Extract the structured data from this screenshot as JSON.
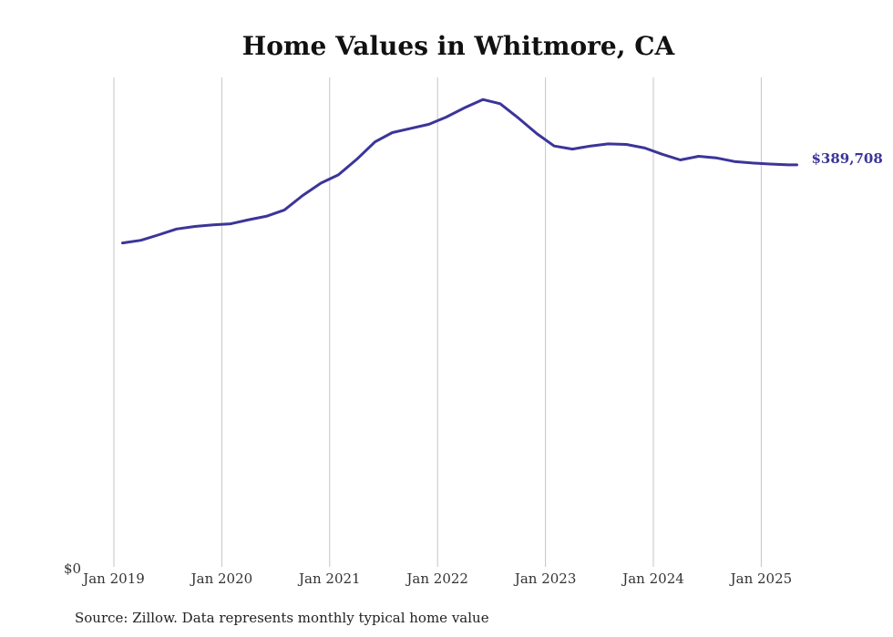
{
  "chart_data": {
    "type": "line",
    "title": "Home Values in Whitmore, CA",
    "source": "Source: Zillow. Data represents monthly typical home value",
    "y_tick_label": "$0",
    "end_label": "$389,708",
    "ylim": [
      0,
      470000
    ],
    "x_ticks": [
      {
        "x": 2019,
        "label": "Jan 2019"
      },
      {
        "x": 2020,
        "label": "Jan 2020"
      },
      {
        "x": 2021,
        "label": "Jan 2021"
      },
      {
        "x": 2022,
        "label": "Jan 2022"
      },
      {
        "x": 2023,
        "label": "Jan 2023"
      },
      {
        "x": 2024,
        "label": "Jan 2024"
      },
      {
        "x": 2025,
        "label": "Jan 2025"
      }
    ],
    "xlim": [
      2019.0,
      2025.33
    ],
    "grid": "vertical",
    "colors": {
      "line": "#3b3599",
      "grid": "#c4c4c4"
    },
    "series": [
      {
        "points": [
          [
            2019.08,
            314000
          ],
          [
            2019.25,
            316500
          ],
          [
            2019.42,
            322000
          ],
          [
            2019.58,
            327500
          ],
          [
            2019.75,
            330000
          ],
          [
            2019.92,
            331500
          ],
          [
            2020.08,
            332500
          ],
          [
            2020.25,
            336500
          ],
          [
            2020.42,
            340000
          ],
          [
            2020.58,
            346000
          ],
          [
            2020.75,
            360000
          ],
          [
            2020.92,
            372000
          ],
          [
            2021.08,
            380000
          ],
          [
            2021.25,
            395000
          ],
          [
            2021.42,
            412000
          ],
          [
            2021.58,
            421000
          ],
          [
            2021.75,
            425000
          ],
          [
            2021.92,
            429000
          ],
          [
            2022.08,
            436000
          ],
          [
            2022.25,
            445000
          ],
          [
            2022.42,
            453000
          ],
          [
            2022.58,
            449000
          ],
          [
            2022.75,
            435000
          ],
          [
            2022.92,
            420000
          ],
          [
            2023.08,
            408000
          ],
          [
            2023.25,
            405000
          ],
          [
            2023.42,
            408000
          ],
          [
            2023.58,
            410000
          ],
          [
            2023.75,
            409500
          ],
          [
            2023.92,
            406000
          ],
          [
            2024.08,
            400000
          ],
          [
            2024.25,
            394500
          ],
          [
            2024.42,
            398000
          ],
          [
            2024.58,
            396500
          ],
          [
            2024.75,
            393000
          ],
          [
            2024.92,
            391500
          ],
          [
            2025.08,
            390500
          ],
          [
            2025.25,
            389708
          ],
          [
            2025.33,
            389708
          ]
        ]
      }
    ]
  }
}
